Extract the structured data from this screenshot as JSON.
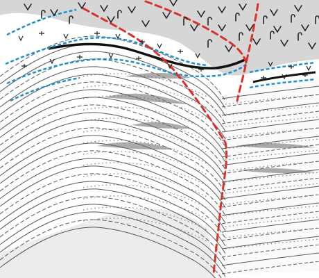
{
  "diagram": {
    "type": "geological-cross-section-sketch",
    "colors": {
      "background": "#ffffff",
      "overburden": "#d6d6d6",
      "strata_line": "#3a3a3a",
      "strata_faint": "#7a7a7a",
      "fault": "#d8322b",
      "blue_marker": "#1f8fcf",
      "bold_horizon": "#111111"
    },
    "layers": {
      "overburden_symbols": [
        "v",
        "ɾ"
      ],
      "highlighted_horizons": [
        "blue",
        "black"
      ],
      "fault_count": 2
    },
    "icons": [
      "v-symbol-icon",
      "hook-symbol-icon"
    ]
  }
}
